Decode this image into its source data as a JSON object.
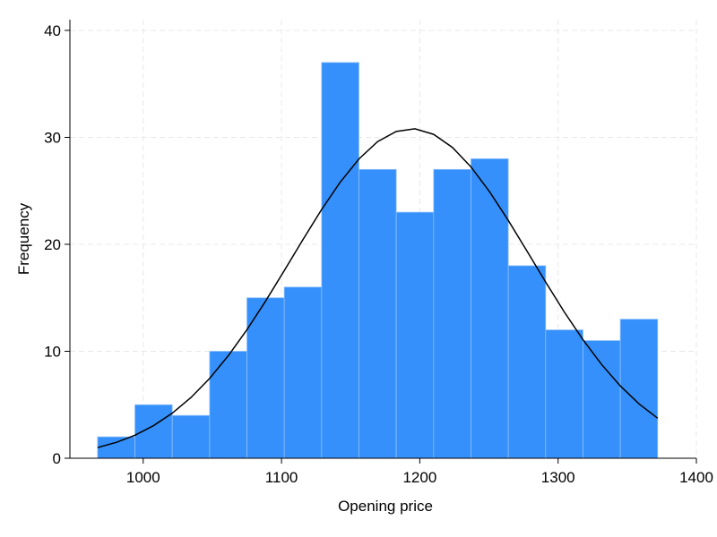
{
  "chart_data": {
    "type": "histogram",
    "xlabel": "Opening price",
    "ylabel": "Frequency",
    "bins": [
      967,
      994,
      1021,
      1048,
      1075,
      1102,
      1129,
      1156,
      1183,
      1210,
      1237,
      1264,
      1291,
      1318,
      1345,
      1372
    ],
    "values": [
      2,
      5,
      4,
      10,
      15,
      16,
      37,
      27,
      23,
      27,
      28,
      18,
      12,
      11,
      13
    ],
    "color": "#3590fb",
    "edgecolor": "#8ec0fb",
    "curve": {
      "color": "#000000",
      "x": [
        967,
        980.5,
        994,
        1007.5,
        1021,
        1034.5,
        1048,
        1061.5,
        1075,
        1088.5,
        1102,
        1115.5,
        1129,
        1142.5,
        1156,
        1169.5,
        1183,
        1196.5,
        1210,
        1223.5,
        1237,
        1250.5,
        1264,
        1277.5,
        1291,
        1304.5,
        1318,
        1331.5,
        1345,
        1358.5,
        1372
      ],
      "values": [
        1.0,
        1.48,
        2.15,
        3.05,
        4.21,
        5.67,
        7.46,
        9.58,
        12.01,
        14.69,
        17.54,
        20.44,
        23.25,
        25.82,
        27.98,
        29.6,
        30.55,
        30.8,
        30.28,
        29.07,
        27.24,
        24.91,
        22.23,
        19.37,
        16.47,
        13.67,
        11.08,
        8.76,
        6.76,
        5.09,
        3.74
      ]
    },
    "xlim": [
      947,
      1400
    ],
    "ylim": [
      0,
      41
    ],
    "xticks": [
      1000,
      1100,
      1200,
      1300,
      1400
    ],
    "yticks": [
      0,
      10,
      20,
      30,
      40
    ],
    "grid": true
  }
}
